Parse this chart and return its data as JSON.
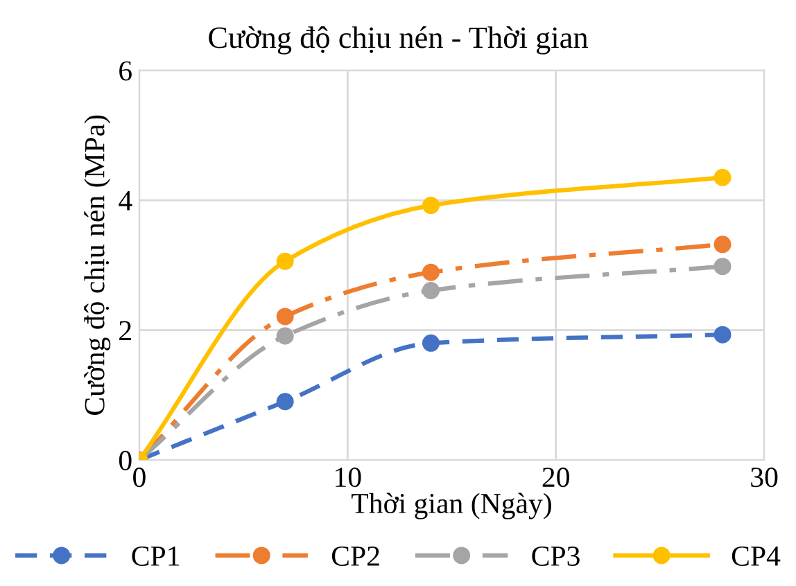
{
  "chart_data": {
    "type": "line",
    "title": "Cường độ chịu nén - Thời gian",
    "xlabel": "Thời gian (Ngày)",
    "ylabel": "Cường độ chịu nén (MPa)",
    "x": [
      0,
      7,
      14,
      28
    ],
    "series": [
      {
        "name": "CP1",
        "color": "#4472c4",
        "line_style": "dashed",
        "values": [
          0,
          0.9,
          1.8,
          1.93
        ]
      },
      {
        "name": "CP2",
        "color": "#ed7d31",
        "line_style": "dashdot",
        "values": [
          0,
          2.21,
          2.89,
          3.32
        ]
      },
      {
        "name": "CP3",
        "color": "#a5a5a5",
        "line_style": "dashdot",
        "values": [
          0,
          1.91,
          2.61,
          2.98
        ]
      },
      {
        "name": "CP4",
        "color": "#ffc000",
        "line_style": "solid",
        "values": [
          0,
          3.06,
          3.92,
          4.35
        ]
      }
    ],
    "marker": "circle",
    "xlim": [
      0,
      30
    ],
    "xticks": [
      0,
      10,
      20,
      30
    ],
    "ylim": [
      0,
      6
    ],
    "yticks": [
      0,
      2,
      4,
      6
    ],
    "grid": true,
    "legend": "bottom"
  }
}
